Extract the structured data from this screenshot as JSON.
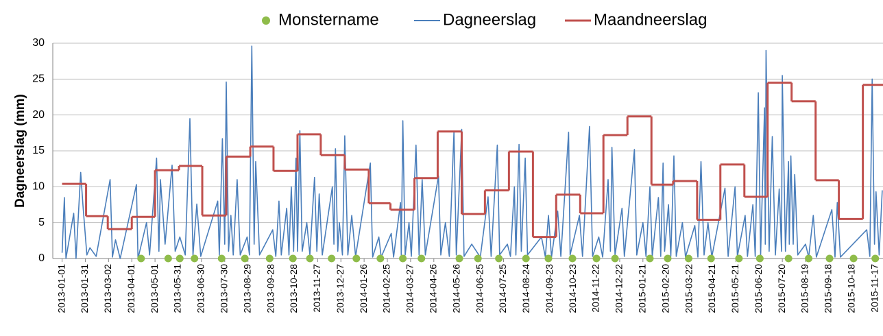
{
  "chart_data": {
    "type": "line",
    "ylabel": "Dagneerslag (mm)",
    "xlim": [
      "2012-12-20",
      "2015-11-27"
    ],
    "ylim": [
      0,
      30
    ],
    "yticks": [
      0,
      5,
      10,
      15,
      20,
      25,
      30
    ],
    "grid": true,
    "legend": "top",
    "xticks": [
      "2013-01-01",
      "2013-01-31",
      "2013-03-02",
      "2013-04-01",
      "2013-05-01",
      "2013-05-31",
      "2013-06-30",
      "2013-07-30",
      "2013-08-29",
      "2013-09-28",
      "2013-10-28",
      "2013-11-27",
      "2013-12-27",
      "2014-01-26",
      "2014-02-25",
      "2014-03-27",
      "2014-04-26",
      "2014-05-26",
      "2014-06-25",
      "2014-07-25",
      "2014-08-24",
      "2014-09-23",
      "2014-10-23",
      "2014-11-22",
      "2014-12-22",
      "2015-01-21",
      "2015-02-20",
      "2015-03-22",
      "2015-04-21",
      "2015-05-21",
      "2015-06-20",
      "2015-07-20",
      "2015-08-19",
      "2015-09-18",
      "2015-10-18",
      "2015-11-17"
    ],
    "series": [
      {
        "name": "Monstername",
        "type": "scatter",
        "color": "#8fbc4a",
        "x": [
          "2013-04-13",
          "2013-05-18",
          "2013-06-02",
          "2013-06-21",
          "2013-07-26",
          "2013-08-25",
          "2013-09-26",
          "2013-10-26",
          "2013-11-17",
          "2013-12-15",
          "2014-01-16",
          "2014-02-16",
          "2014-03-17",
          "2014-04-10",
          "2014-05-29",
          "2014-06-22",
          "2014-07-19",
          "2014-08-23",
          "2014-09-21",
          "2014-10-22",
          "2014-11-22",
          "2014-12-16",
          "2015-01-30",
          "2015-02-22",
          "2015-03-21",
          "2015-04-19",
          "2015-05-25",
          "2015-06-21",
          "2015-07-28",
          "2015-08-23",
          "2015-09-19",
          "2015-10-20",
          "2015-11-17"
        ],
        "values": [
          0,
          0,
          0,
          0,
          0,
          0,
          0,
          0,
          0,
          0,
          0,
          0,
          0,
          0,
          0,
          0,
          0,
          0,
          0,
          0,
          0,
          0,
          0,
          0,
          0,
          0,
          0,
          0,
          0,
          0,
          0,
          0,
          0
        ]
      },
      {
        "name": "Dagneerslag",
        "type": "line",
        "color": "#4a7ebb",
        "x": [
          "2013-01-01",
          "2013-01-04",
          "2013-01-06",
          "2013-01-16",
          "2013-01-19",
          "2013-01-25",
          "2013-01-28",
          "2013-02-02",
          "2013-02-06",
          "2013-02-14",
          "2013-03-04",
          "2013-03-07",
          "2013-03-11",
          "2013-03-17",
          "2013-04-07",
          "2013-04-09",
          "2013-04-20",
          "2013-04-24",
          "2013-05-03",
          "2013-05-06",
          "2013-05-08",
          "2013-05-14",
          "2013-05-23",
          "2013-05-27",
          "2013-06-02",
          "2013-06-09",
          "2013-06-15",
          "2013-06-19",
          "2013-06-24",
          "2013-06-29",
          "2013-07-21",
          "2013-07-23",
          "2013-07-27",
          "2013-07-30",
          "2013-08-01",
          "2013-08-04",
          "2013-08-07",
          "2013-08-10",
          "2013-08-15",
          "2013-08-19",
          "2013-08-28",
          "2013-08-31",
          "2013-09-03",
          "2013-09-06",
          "2013-09-08",
          "2013-09-13",
          "2013-09-30",
          "2013-10-04",
          "2013-10-08",
          "2013-10-11",
          "2013-10-18",
          "2013-10-21",
          "2013-10-24",
          "2013-10-27",
          "2013-10-30",
          "2013-11-01",
          "2013-11-04",
          "2013-11-07",
          "2013-11-13",
          "2013-11-17",
          "2013-11-23",
          "2013-11-26",
          "2013-11-29",
          "2013-12-03",
          "2013-12-16",
          "2013-12-18",
          "2013-12-20",
          "2013-12-23",
          "2013-12-25",
          "2013-12-29",
          "2014-01-01",
          "2014-01-05",
          "2014-01-10",
          "2014-01-15",
          "2014-02-03",
          "2014-02-06",
          "2014-02-14",
          "2014-02-17",
          "2014-03-02",
          "2014-03-05",
          "2014-03-14",
          "2014-03-15",
          "2014-03-17",
          "2014-03-20",
          "2014-03-25",
          "2014-03-28",
          "2014-04-03",
          "2014-04-07",
          "2014-04-11",
          "2014-04-15",
          "2014-05-02",
          "2014-05-05",
          "2014-05-11",
          "2014-05-16",
          "2014-05-22",
          "2014-05-25",
          "2014-06-01",
          "2014-06-04",
          "2014-06-14",
          "2014-06-25",
          "2014-07-05",
          "2014-07-09",
          "2014-07-17",
          "2014-07-20",
          "2014-07-30",
          "2014-08-03",
          "2014-08-08",
          "2014-08-10",
          "2014-08-14",
          "2014-08-17",
          "2014-08-22",
          "2014-08-25",
          "2014-09-12",
          "2014-09-17",
          "2014-09-21",
          "2014-09-25",
          "2014-10-03",
          "2014-10-07",
          "2014-10-17",
          "2014-10-19",
          "2014-10-31",
          "2014-11-04",
          "2014-11-13",
          "2014-11-17",
          "2014-11-25",
          "2014-11-30",
          "2014-12-07",
          "2014-12-10",
          "2014-12-12",
          "2014-12-16",
          "2014-12-25",
          "2014-12-28",
          "2015-01-10",
          "2015-01-13",
          "2015-01-21",
          "2015-01-25",
          "2015-01-30",
          "2015-02-02",
          "2015-02-10",
          "2015-02-13",
          "2015-02-16",
          "2015-02-18",
          "2015-02-23",
          "2015-02-26",
          "2015-03-02",
          "2015-03-05",
          "2015-03-13",
          "2015-03-17",
          "2015-03-29",
          "2015-04-02",
          "2015-04-06",
          "2015-04-10",
          "2015-04-15",
          "2015-04-20",
          "2015-05-07",
          "2015-05-11",
          "2015-05-20",
          "2015-05-23",
          "2015-06-02",
          "2015-06-05",
          "2015-06-12",
          "2015-06-15",
          "2015-06-19",
          "2015-06-22",
          "2015-06-27",
          "2015-06-28",
          "2015-06-29",
          "2015-07-03",
          "2015-07-07",
          "2015-07-11",
          "2015-07-16",
          "2015-07-19",
          "2015-07-20",
          "2015-07-24",
          "2015-07-28",
          "2015-07-29",
          "2015-07-31",
          "2015-08-03",
          "2015-08-05",
          "2015-08-09",
          "2015-08-19",
          "2015-08-23",
          "2015-08-29",
          "2015-09-02",
          "2015-09-22",
          "2015-09-26",
          "2015-09-29",
          "2015-10-03",
          "2015-11-06",
          "2015-11-10",
          "2015-11-13",
          "2015-11-16",
          "2015-11-18",
          "2015-11-22",
          "2015-11-26"
        ],
        "values": [
          0.8,
          8.5,
          0,
          6.3,
          0,
          12,
          7.3,
          0.5,
          1.5,
          0.3,
          11,
          0.2,
          2.6,
          0,
          10.3,
          0,
          5,
          0.5,
          14,
          1,
          11,
          2,
          13,
          1,
          3,
          0.5,
          19.5,
          0.5,
          7.6,
          0.3,
          8,
          0.5,
          16.7,
          2,
          24.6,
          1,
          6,
          0.5,
          11,
          0.5,
          3,
          0.5,
          29.6,
          2,
          13.5,
          0.5,
          4,
          0.3,
          8,
          0.5,
          7,
          0.5,
          10,
          1,
          14,
          1,
          17.8,
          1,
          5,
          0.5,
          11.3,
          1,
          9,
          0.5,
          10,
          2,
          15.3,
          1,
          5,
          0.5,
          17.1,
          0.5,
          6,
          0.3,
          13.3,
          0.2,
          3,
          0.2,
          3.5,
          0.2,
          7.8,
          0.5,
          19.2,
          0.5,
          5,
          0.3,
          15.8,
          0.5,
          11,
          0.5,
          11.5,
          0.5,
          5,
          0.3,
          17.7,
          0.5,
          18,
          0.3,
          2,
          0.2,
          8.6,
          0.3,
          15.8,
          0.5,
          2,
          0.3,
          10,
          0.5,
          15.9,
          1,
          14,
          0.5,
          3,
          0.2,
          6,
          0.2,
          6.6,
          0.3,
          17.6,
          0.5,
          6,
          0.3,
          18.4,
          0.3,
          3,
          0.2,
          11,
          1,
          15.5,
          0.5,
          7,
          0.3,
          15.2,
          0.5,
          5,
          0.3,
          10,
          0.3,
          8.5,
          0.3,
          13.3,
          1,
          7.5,
          0.3,
          14.3,
          0.3,
          5,
          0.2,
          4.6,
          0.2,
          13.5,
          0.5,
          5,
          0.2,
          9.8,
          0.3,
          10,
          0.3,
          6,
          0.3,
          7.5,
          0.3,
          23.1,
          0.5,
          21,
          2,
          29,
          1,
          17,
          0.5,
          9.7,
          1,
          25.5,
          1,
          13.5,
          2,
          14.3,
          2,
          11.7,
          0.5,
          2,
          0.2,
          6,
          0.2,
          6.8,
          0.2,
          7.8,
          0.2,
          4,
          0.3,
          25,
          2,
          9.3,
          0.5,
          9.5
        ]
      },
      {
        "name": "Maandneerslag",
        "type": "line",
        "step": true,
        "color": "#c0504d",
        "x": [
          "2013-01-01",
          "2013-02-01",
          "2013-03-01",
          "2013-04-01",
          "2013-05-01",
          "2013-06-01",
          "2013-07-01",
          "2013-08-01",
          "2013-09-01",
          "2013-10-01",
          "2013-11-01",
          "2013-12-01",
          "2014-01-01",
          "2014-02-01",
          "2014-03-01",
          "2014-04-01",
          "2014-05-01",
          "2014-06-01",
          "2014-07-01",
          "2014-08-01",
          "2014-09-01",
          "2014-10-01",
          "2014-11-01",
          "2014-12-01",
          "2015-01-01",
          "2015-02-01",
          "2015-03-01",
          "2015-04-01",
          "2015-05-01",
          "2015-06-01",
          "2015-07-01",
          "2015-08-01",
          "2015-09-01",
          "2015-10-01",
          "2015-11-01"
        ],
        "values": [
          10.4,
          5.9,
          4.1,
          5.8,
          12.3,
          12.9,
          6.0,
          14.2,
          15.6,
          12.2,
          17.3,
          14.4,
          12.4,
          7.7,
          6.8,
          11.2,
          17.7,
          6.2,
          9.5,
          14.9,
          3.0,
          8.9,
          6.3,
          17.2,
          19.8,
          10.3,
          10.8,
          5.4,
          13.1,
          8.6,
          24.5,
          21.9,
          10.9,
          5.5,
          24.2
        ]
      }
    ]
  }
}
